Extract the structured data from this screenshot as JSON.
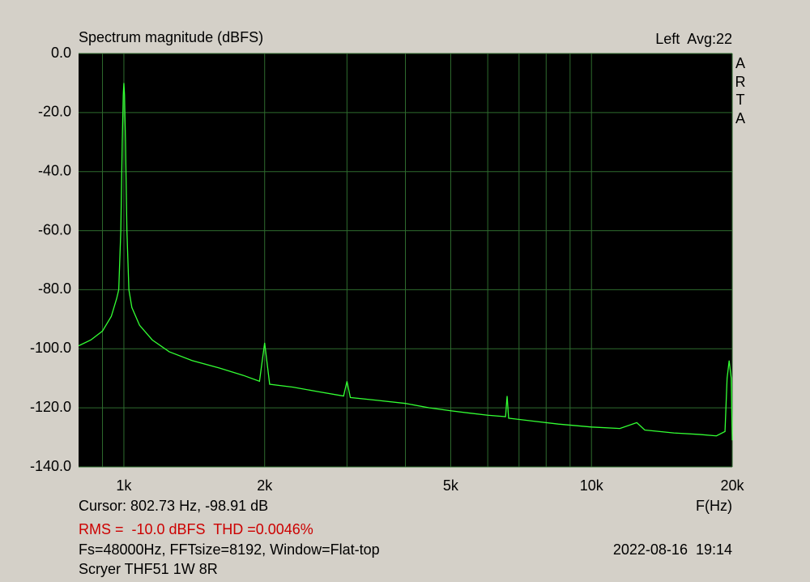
{
  "chart_data": {
    "type": "line",
    "title": "Spectrum magnitude (dBFS)",
    "channel_info": "Left  Avg:22",
    "brand": "ARTA",
    "x_label": "F(Hz)",
    "cursor": "Cursor: 802.73 Hz, -98.91 dB",
    "measurement": "RMS =  -10.0 dBFS  THD =0.0046%",
    "settings": "Fs=48000Hz, FFTsize=8192, Window=Flat-top",
    "timestamp": "2022-08-16  19:14",
    "device": "Scryer THF51 1W 8R",
    "xscale": "log",
    "xlim": [
      800,
      20000
    ],
    "ylim": [
      -140,
      0
    ],
    "xticks": [
      {
        "value": 1000,
        "label": "1k"
      },
      {
        "value": 2000,
        "label": "2k"
      },
      {
        "value": 5000,
        "label": "5k"
      },
      {
        "value": 10000,
        "label": "10k"
      },
      {
        "value": 20000,
        "label": "20k"
      }
    ],
    "xgrid_minor": [
      900,
      3000,
      4000,
      6000,
      7000,
      8000,
      9000
    ],
    "yticks": [
      {
        "value": 0,
        "label": "0.0"
      },
      {
        "value": -20,
        "label": "-20.0"
      },
      {
        "value": -40,
        "label": "-40.0"
      },
      {
        "value": -60,
        "label": "-60.0"
      },
      {
        "value": -80,
        "label": "-80.0"
      },
      {
        "value": -100,
        "label": "-100.0"
      },
      {
        "value": -120,
        "label": "-120.0"
      },
      {
        "value": -140,
        "label": "-140.0"
      }
    ],
    "grid": true,
    "x": [
      800,
      850,
      900,
      940,
      965,
      975,
      985,
      992,
      997,
      1000,
      1003,
      1008,
      1015,
      1025,
      1040,
      1080,
      1150,
      1250,
      1400,
      1600,
      1800,
      1950,
      2000,
      2050,
      2300,
      2600,
      2950,
      3000,
      3050,
      3500,
      4000,
      4500,
      5000,
      5500,
      6000,
      6550,
      6600,
      6650,
      7500,
      8500,
      10000,
      11500,
      12500,
      13000,
      15000,
      17000,
      18500,
      19300,
      19500,
      19700,
      19900,
      20000
    ],
    "series": [
      {
        "name": "Left",
        "color": "#33ff33",
        "values": [
          -99,
          -97,
          -94,
          -89,
          -83,
          -80,
          -60,
          -30,
          -14,
          -10,
          -14,
          -30,
          -60,
          -80,
          -86,
          -92,
          -97,
          -101,
          -104,
          -106.5,
          -109,
          -111,
          -98,
          -112,
          -113,
          -114.5,
          -116,
          -111,
          -116.5,
          -117.5,
          -118.5,
          -120,
          -121,
          -121.8,
          -122.5,
          -123,
          -116,
          -123.5,
          -124.5,
          -125.5,
          -126.5,
          -127,
          -125,
          -127.5,
          -128.5,
          -129,
          -129.5,
          -128,
          -110,
          -104,
          -110,
          -131
        ]
      }
    ]
  }
}
